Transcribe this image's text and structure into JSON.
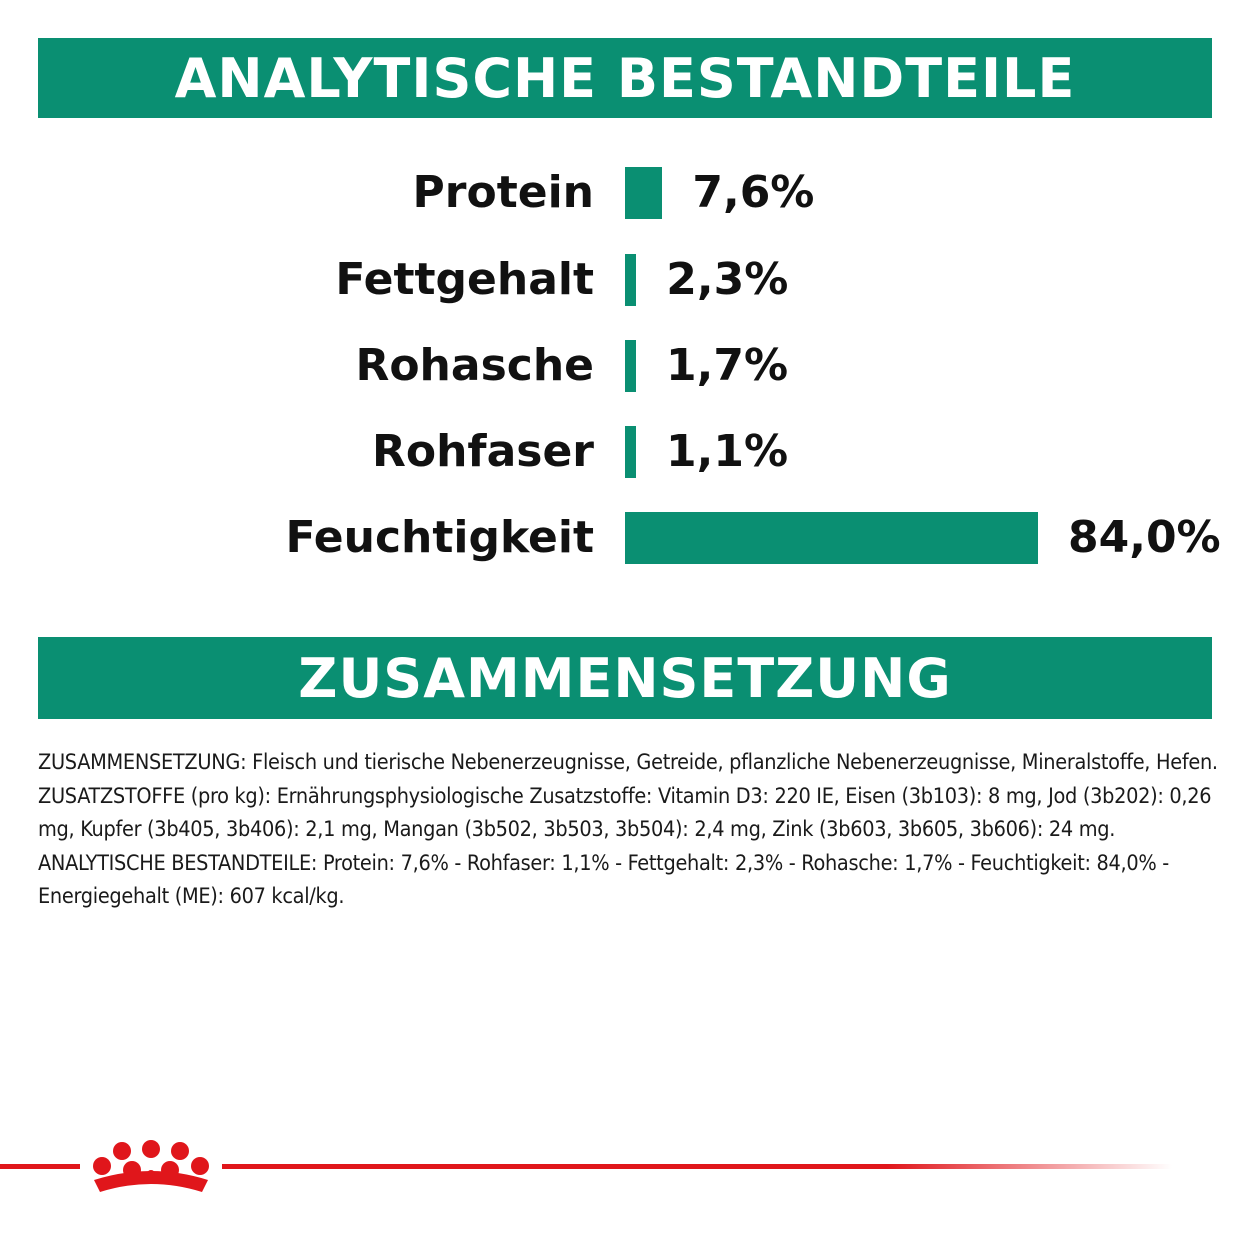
{
  "banners": {
    "analytic": "ANALYTISCHE BESTANDTEILE",
    "composition": "ZUSAMMENSETZUNG"
  },
  "chart_data": {
    "type": "bar",
    "orientation": "horizontal",
    "categories": [
      "Protein",
      "Fettgehalt",
      "Rohasche",
      "Rohfaser",
      "Feuchtigkeit"
    ],
    "values": [
      7.6,
      2.3,
      1.7,
      1.1,
      84.0
    ],
    "value_labels": [
      "7,6%",
      "2,3%",
      "1,7%",
      "1,1%",
      "84,0%"
    ],
    "unit": "%",
    "grid": false,
    "bar_color": "#0a8f72"
  },
  "composition_text": "ZUSAMMENSETZUNG: Fleisch und tierische Nebenerzeugnisse, Getreide, pflanzliche Nebenerzeugnisse, Mineralstoffe, Hefen. ZUSATZSTOFFE (pro kg): Ernährungsphysiologische Zusatzstoffe: Vitamin D3: 220 IE, Eisen (3b103): 8 mg, Jod (3b202): 0,26 mg, Kupfer (3b405, 3b406): 2,1 mg, Mangan (3b502, 3b503, 3b504): 2,4 mg, Zink (3b603, 3b605, 3b606): 24 mg. ANALYTISCHE BESTANDTEILE: Protein: 7,6% - Rohfaser: 1,1% - Fettgehalt: 2,3% - Rohasche: 1,7% - Feuchtigkeit: 84,0% - Energiegehalt (ME): 607 kcal/kg.",
  "colors": {
    "accent": "#0a8f72",
    "brand_red": "#e0161b"
  },
  "icons": {
    "logo": "royal-crown-icon"
  }
}
